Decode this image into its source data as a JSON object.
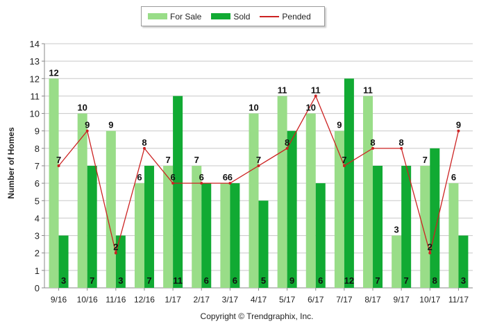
{
  "chart_data": {
    "type": "bar",
    "ylabel": "Number of Homes",
    "ylim": [
      0,
      14
    ],
    "yticks": [
      0,
      1,
      2,
      3,
      4,
      5,
      6,
      7,
      8,
      9,
      10,
      11,
      12,
      13,
      14
    ],
    "grid": true,
    "legend_position": "top-center",
    "categories": [
      "9/16",
      "10/16",
      "11/16",
      "12/16",
      "1/17",
      "2/17",
      "3/17",
      "4/17",
      "5/17",
      "6/17",
      "7/17",
      "8/17",
      "9/17",
      "10/17",
      "11/17"
    ],
    "series": [
      {
        "name": "For Sale",
        "type": "bar",
        "color": "#99dd88",
        "values": [
          12,
          10,
          9,
          6,
          7,
          7,
          6,
          10,
          11,
          10,
          9,
          11,
          3,
          7,
          6
        ]
      },
      {
        "name": "Sold",
        "type": "bar",
        "color": "#11aa33",
        "values": [
          3,
          7,
          3,
          7,
          11,
          6,
          6,
          5,
          9,
          6,
          12,
          7,
          7,
          8,
          3
        ]
      },
      {
        "name": "Pended",
        "type": "line",
        "color": "#cc2222",
        "values": [
          7,
          9,
          2,
          8,
          6,
          6,
          6,
          7,
          8,
          11,
          7,
          8,
          8,
          2,
          9
        ]
      }
    ]
  },
  "footer": "Copyright © Trendgraphix, Inc."
}
